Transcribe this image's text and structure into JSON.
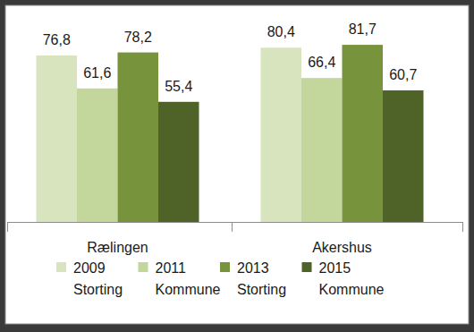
{
  "chart_data": {
    "type": "bar",
    "categories": [
      "Rælingen",
      "Akershus"
    ],
    "series": [
      {
        "name": "2009 Storting",
        "color": "#d7e4bd",
        "values": [
          76.8,
          80.4
        ],
        "value_labels": [
          "76,8",
          "80,4"
        ]
      },
      {
        "name": "2011 Kommune",
        "color": "#c3d69b",
        "values": [
          61.6,
          66.4
        ],
        "value_labels": [
          "61,6",
          "66,4"
        ]
      },
      {
        "name": "2013 Storting",
        "color": "#77933c",
        "values": [
          78.2,
          81.7
        ],
        "value_labels": [
          "78,2",
          "81,7"
        ]
      },
      {
        "name": "2015 Kommune",
        "color": "#4f6228",
        "values": [
          55.4,
          60.7
        ],
        "value_labels": [
          "55,4",
          "60,7"
        ]
      }
    ],
    "ylim": [
      0,
      90
    ],
    "data_labels": true,
    "tick_labels": "x",
    "legend": "bottom"
  }
}
